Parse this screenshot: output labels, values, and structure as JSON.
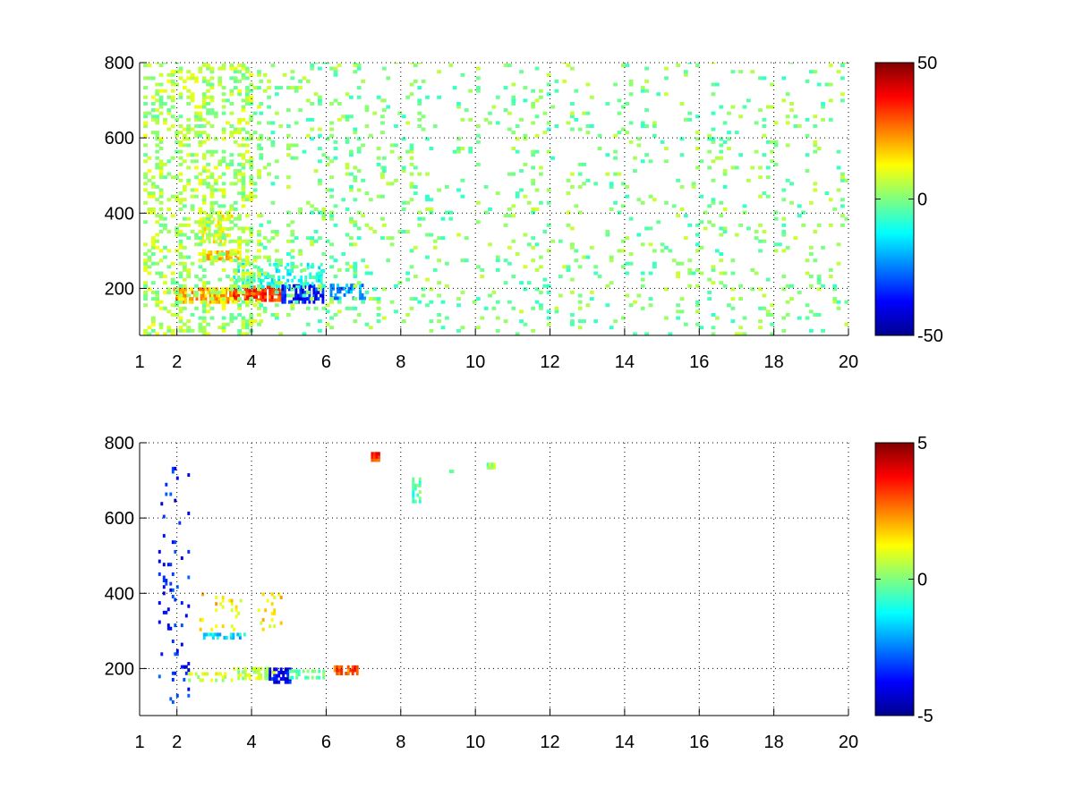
{
  "chart_data": [
    {
      "type": "heatmap",
      "title": "",
      "xlabel": "",
      "ylabel": "",
      "xlim": [
        1,
        20
      ],
      "ylim": [
        75,
        800
      ],
      "x_ticks": [
        {
          "value": 1,
          "label": "1"
        },
        {
          "value": 2,
          "label": "2"
        },
        {
          "value": 4,
          "label": "4"
        },
        {
          "value": 6,
          "label": "6"
        },
        {
          "value": 8,
          "label": "8"
        },
        {
          "value": 10,
          "label": "10"
        },
        {
          "value": 12,
          "label": "12"
        },
        {
          "value": 14,
          "label": "14"
        },
        {
          "value": 16,
          "label": "16"
        },
        {
          "value": 18,
          "label": "18"
        },
        {
          "value": 20,
          "label": "20"
        }
      ],
      "y_ticks": [
        {
          "value": 200,
          "label": "200"
        },
        {
          "value": 400,
          "label": "400"
        },
        {
          "value": 600,
          "label": "600"
        },
        {
          "value": 800,
          "label": "800"
        }
      ],
      "grid": true,
      "colormap": "jet",
      "colorbar": {
        "min": -50,
        "max": 50,
        "ticks": [
          {
            "value": 50,
            "label": "50"
          },
          {
            "value": 0,
            "label": "0"
          },
          {
            "value": -50,
            "label": "-50"
          }
        ]
      },
      "features": [
        {
          "x0": 1.9,
          "x1": 3.5,
          "y0": 160,
          "y1": 195,
          "value": 20,
          "density": 0.8
        },
        {
          "x0": 3.5,
          "x1": 4.8,
          "y0": 165,
          "y1": 200,
          "value": 32,
          "density": 0.8
        },
        {
          "x0": 4.8,
          "x1": 5.9,
          "y0": 160,
          "y1": 205,
          "value": -35,
          "density": 0.75
        },
        {
          "x0": 6.1,
          "x1": 7.0,
          "y0": 170,
          "y1": 205,
          "value": -22,
          "density": 0.6
        },
        {
          "x0": 2.7,
          "x1": 3.7,
          "y0": 275,
          "y1": 295,
          "value": 18,
          "density": 0.7
        },
        {
          "x0": 2.6,
          "x1": 3.5,
          "y0": 320,
          "y1": 400,
          "value": 10,
          "density": 0.45
        },
        {
          "x0": 3.5,
          "x1": 5.9,
          "y0": 200,
          "y1": 260,
          "value": -10,
          "density": 0.35
        },
        {
          "x0": 1.1,
          "x1": 4.2,
          "y0": 75,
          "y1": 800,
          "value": 4,
          "density": 0.3
        },
        {
          "x0": 4.2,
          "x1": 7.5,
          "y0": 75,
          "y1": 800,
          "value": 0,
          "density": 0.12
        },
        {
          "x0": 7.5,
          "x1": 20,
          "y0": 75,
          "y1": 800,
          "value": 0,
          "density": 0.08
        }
      ]
    },
    {
      "type": "heatmap",
      "title": "",
      "xlabel": "",
      "ylabel": "",
      "xlim": [
        1,
        20
      ],
      "ylim": [
        75,
        800
      ],
      "x_ticks": [
        {
          "value": 1,
          "label": "1"
        },
        {
          "value": 2,
          "label": "2"
        },
        {
          "value": 4,
          "label": "4"
        },
        {
          "value": 6,
          "label": "6"
        },
        {
          "value": 8,
          "label": "8"
        },
        {
          "value": 10,
          "label": "10"
        },
        {
          "value": 12,
          "label": "12"
        },
        {
          "value": 14,
          "label": "14"
        },
        {
          "value": 16,
          "label": "16"
        },
        {
          "value": 18,
          "label": "18"
        },
        {
          "value": 20,
          "label": "20"
        }
      ],
      "y_ticks": [
        {
          "value": 200,
          "label": "200"
        },
        {
          "value": 400,
          "label": "400"
        },
        {
          "value": 600,
          "label": "600"
        },
        {
          "value": 800,
          "label": "800"
        }
      ],
      "grid": true,
      "colormap": "jet",
      "colorbar": {
        "min": -5,
        "max": 5,
        "ticks": [
          {
            "value": 5,
            "label": "5"
          },
          {
            "value": 0,
            "label": "0"
          },
          {
            "value": -5,
            "label": "-5"
          }
        ]
      },
      "features": [
        {
          "x0": 2.3,
          "x1": 3.5,
          "y0": 165,
          "y1": 190,
          "value": 0.8,
          "density": 0.45
        },
        {
          "x0": 3.5,
          "x1": 4.6,
          "y0": 170,
          "y1": 200,
          "value": 0.6,
          "density": 0.6
        },
        {
          "x0": 4.4,
          "x1": 5.0,
          "y0": 160,
          "y1": 195,
          "value": -3.8,
          "density": 0.6
        },
        {
          "x0": 5.0,
          "x1": 5.9,
          "y0": 172,
          "y1": 195,
          "value": -0.3,
          "density": 0.55
        },
        {
          "x0": 6.2,
          "x1": 6.9,
          "y0": 183,
          "y1": 208,
          "value": 2.8,
          "density": 0.75
        },
        {
          "x0": 2.7,
          "x1": 3.8,
          "y0": 278,
          "y1": 295,
          "value": -1.6,
          "density": 0.6
        },
        {
          "x0": 2.6,
          "x1": 4.8,
          "y0": 300,
          "y1": 400,
          "value": 1.5,
          "density": 0.12
        },
        {
          "x0": 1.5,
          "x1": 2.3,
          "y0": 90,
          "y1": 730,
          "value": -3.5,
          "density": 0.06
        },
        {
          "x0": 8.3,
          "x1": 8.5,
          "y0": 640,
          "y1": 700,
          "value": -0.5,
          "density": 0.5
        },
        {
          "x0": 7.2,
          "x1": 7.4,
          "y0": 750,
          "y1": 770,
          "value": 3.2,
          "density": 1.0
        },
        {
          "x0": 10.3,
          "x1": 10.5,
          "y0": 730,
          "y1": 745,
          "value": 0.2,
          "density": 1.0
        },
        {
          "x0": 9.3,
          "x1": 9.4,
          "y0": 720,
          "y1": 728,
          "value": -0.8,
          "density": 1.0
        }
      ]
    }
  ]
}
